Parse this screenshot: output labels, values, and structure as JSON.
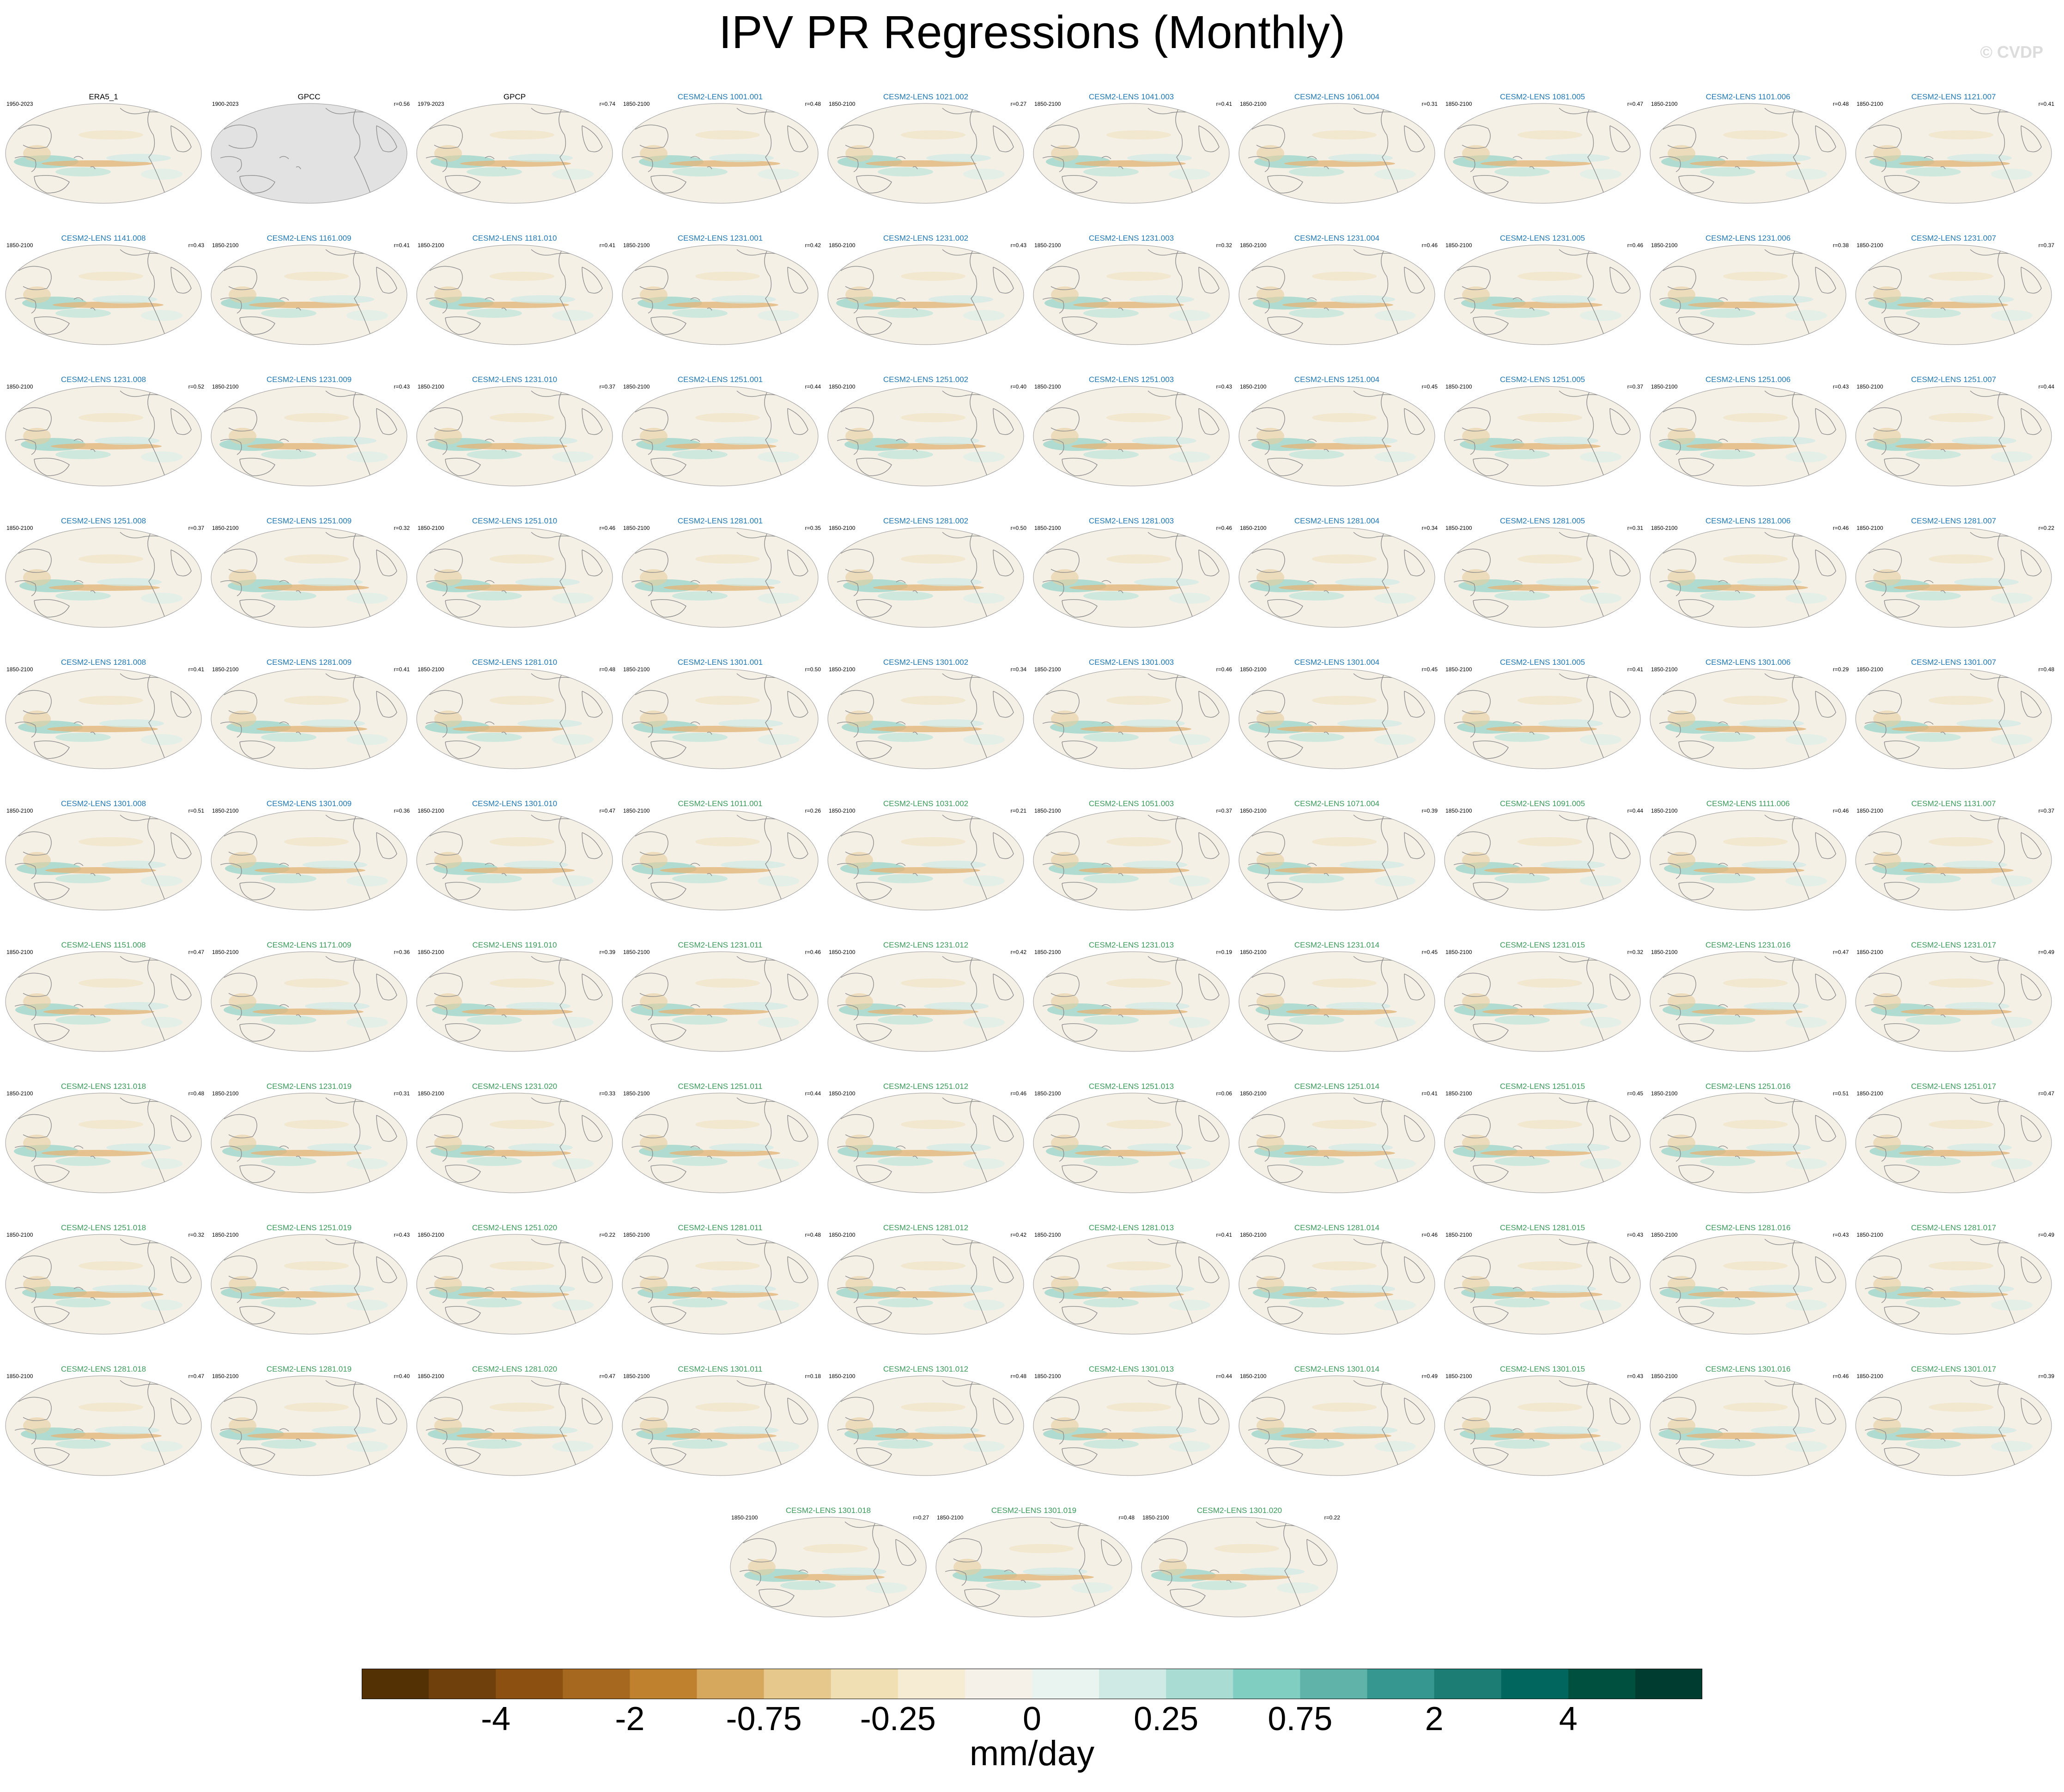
{
  "title": "IPV PR Regressions (Monthly)",
  "copyright": "© CVDP",
  "colors": {
    "obs_name": "#000000",
    "model_blue": "#1f77b4",
    "model_green": "#3a9a5a",
    "land_gray": "#e2e2e2",
    "coast": "#8c8c8c"
  },
  "chart_data": {
    "type": "heatmap",
    "units": "mm/day",
    "colorbar": {
      "ticks": [
        "-4",
        "-2",
        "-0.75",
        "-0.25",
        "0",
        "0.25",
        "0.75",
        "2",
        "4"
      ],
      "colors": [
        "#543005",
        "#6f400c",
        "#8c5110",
        "#a6671e",
        "#bf812d",
        "#d6a85e",
        "#e6c88c",
        "#f1dfb4",
        "#f6ebd3",
        "#f5f1e9",
        "#e9f3ef",
        "#cfeae4",
        "#a9ddd3",
        "#80cdc1",
        "#5fb3a9",
        "#35978f",
        "#1b7d73",
        "#01665e",
        "#00503f",
        "#003c30"
      ]
    },
    "panels": [
      {
        "name": "ERA5_1",
        "period": "1950-2023",
        "r": "",
        "group": "obs"
      },
      {
        "name": "GPCC",
        "period": "1900-2023",
        "r": "r=0.56",
        "group": "obs",
        "nodata": true
      },
      {
        "name": "GPCP",
        "period": "1979-2023",
        "r": "r=0.74",
        "group": "obs"
      },
      {
        "name": "CESM2-LENS 1001.001",
        "period": "1850-2100",
        "r": "r=0.48",
        "group": "blue"
      },
      {
        "name": "CESM2-LENS 1021.002",
        "period": "1850-2100",
        "r": "r=0.27",
        "group": "blue"
      },
      {
        "name": "CESM2-LENS 1041.003",
        "period": "1850-2100",
        "r": "r=0.41",
        "group": "blue"
      },
      {
        "name": "CESM2-LENS 1061.004",
        "period": "1850-2100",
        "r": "r=0.31",
        "group": "blue"
      },
      {
        "name": "CESM2-LENS 1081.005",
        "period": "1850-2100",
        "r": "r=0.47",
        "group": "blue"
      },
      {
        "name": "CESM2-LENS 1101.006",
        "period": "1850-2100",
        "r": "r=0.48",
        "group": "blue"
      },
      {
        "name": "CESM2-LENS 1121.007",
        "period": "1850-2100",
        "r": "r=0.41",
        "group": "blue"
      },
      {
        "name": "CESM2-LENS 1141.008",
        "period": "1850-2100",
        "r": "r=0.43",
        "group": "blue"
      },
      {
        "name": "CESM2-LENS 1161.009",
        "period": "1850-2100",
        "r": "r=0.41",
        "group": "blue"
      },
      {
        "name": "CESM2-LENS 1181.010",
        "period": "1850-2100",
        "r": "r=0.41",
        "group": "blue"
      },
      {
        "name": "CESM2-LENS 1231.001",
        "period": "1850-2100",
        "r": "r=0.42",
        "group": "blue"
      },
      {
        "name": "CESM2-LENS 1231.002",
        "period": "1850-2100",
        "r": "r=0.43",
        "group": "blue"
      },
      {
        "name": "CESM2-LENS 1231.003",
        "period": "1850-2100",
        "r": "r=0.32",
        "group": "blue"
      },
      {
        "name": "CESM2-LENS 1231.004",
        "period": "1850-2100",
        "r": "r=0.46",
        "group": "blue"
      },
      {
        "name": "CESM2-LENS 1231.005",
        "period": "1850-2100",
        "r": "r=0.46",
        "group": "blue"
      },
      {
        "name": "CESM2-LENS 1231.006",
        "period": "1850-2100",
        "r": "r=0.38",
        "group": "blue"
      },
      {
        "name": "CESM2-LENS 1231.007",
        "period": "1850-2100",
        "r": "r=0.37",
        "group": "blue"
      },
      {
        "name": "CESM2-LENS 1231.008",
        "period": "1850-2100",
        "r": "r=0.52",
        "group": "blue"
      },
      {
        "name": "CESM2-LENS 1231.009",
        "period": "1850-2100",
        "r": "r=0.43",
        "group": "blue"
      },
      {
        "name": "CESM2-LENS 1231.010",
        "period": "1850-2100",
        "r": "r=0.37",
        "group": "blue"
      },
      {
        "name": "CESM2-LENS 1251.001",
        "period": "1850-2100",
        "r": "r=0.44",
        "group": "blue"
      },
      {
        "name": "CESM2-LENS 1251.002",
        "period": "1850-2100",
        "r": "r=0.40",
        "group": "blue"
      },
      {
        "name": "CESM2-LENS 1251.003",
        "period": "1850-2100",
        "r": "r=0.43",
        "group": "blue"
      },
      {
        "name": "CESM2-LENS 1251.004",
        "period": "1850-2100",
        "r": "r=0.45",
        "group": "blue"
      },
      {
        "name": "CESM2-LENS 1251.005",
        "period": "1850-2100",
        "r": "r=0.37",
        "group": "blue"
      },
      {
        "name": "CESM2-LENS 1251.006",
        "period": "1850-2100",
        "r": "r=0.43",
        "group": "blue"
      },
      {
        "name": "CESM2-LENS 1251.007",
        "period": "1850-2100",
        "r": "r=0.44",
        "group": "blue"
      },
      {
        "name": "CESM2-LENS 1251.008",
        "period": "1850-2100",
        "r": "r=0.37",
        "group": "blue"
      },
      {
        "name": "CESM2-LENS 1251.009",
        "period": "1850-2100",
        "r": "r=0.32",
        "group": "blue"
      },
      {
        "name": "CESM2-LENS 1251.010",
        "period": "1850-2100",
        "r": "r=0.46",
        "group": "blue"
      },
      {
        "name": "CESM2-LENS 1281.001",
        "period": "1850-2100",
        "r": "r=0.35",
        "group": "blue"
      },
      {
        "name": "CESM2-LENS 1281.002",
        "period": "1850-2100",
        "r": "r=0.50",
        "group": "blue"
      },
      {
        "name": "CESM2-LENS 1281.003",
        "period": "1850-2100",
        "r": "r=0.46",
        "group": "blue"
      },
      {
        "name": "CESM2-LENS 1281.004",
        "period": "1850-2100",
        "r": "r=0.34",
        "group": "blue"
      },
      {
        "name": "CESM2-LENS 1281.005",
        "period": "1850-2100",
        "r": "r=0.31",
        "group": "blue"
      },
      {
        "name": "CESM2-LENS 1281.006",
        "period": "1850-2100",
        "r": "r=0.46",
        "group": "blue"
      },
      {
        "name": "CESM2-LENS 1281.007",
        "period": "1850-2100",
        "r": "r=0.22",
        "group": "blue"
      },
      {
        "name": "CESM2-LENS 1281.008",
        "period": "1850-2100",
        "r": "r=0.41",
        "group": "blue"
      },
      {
        "name": "CESM2-LENS 1281.009",
        "period": "1850-2100",
        "r": "r=0.41",
        "group": "blue"
      },
      {
        "name": "CESM2-LENS 1281.010",
        "period": "1850-2100",
        "r": "r=0.48",
        "group": "blue"
      },
      {
        "name": "CESM2-LENS 1301.001",
        "period": "1850-2100",
        "r": "r=0.50",
        "group": "blue"
      },
      {
        "name": "CESM2-LENS 1301.002",
        "period": "1850-2100",
        "r": "r=0.34",
        "group": "blue"
      },
      {
        "name": "CESM2-LENS 1301.003",
        "period": "1850-2100",
        "r": "r=0.46",
        "group": "blue"
      },
      {
        "name": "CESM2-LENS 1301.004",
        "period": "1850-2100",
        "r": "r=0.45",
        "group": "blue"
      },
      {
        "name": "CESM2-LENS 1301.005",
        "period": "1850-2100",
        "r": "r=0.41",
        "group": "blue"
      },
      {
        "name": "CESM2-LENS 1301.006",
        "period": "1850-2100",
        "r": "r=0.29",
        "group": "blue"
      },
      {
        "name": "CESM2-LENS 1301.007",
        "period": "1850-2100",
        "r": "r=0.48",
        "group": "blue"
      },
      {
        "name": "CESM2-LENS 1301.008",
        "period": "1850-2100",
        "r": "r=0.51",
        "group": "blue"
      },
      {
        "name": "CESM2-LENS 1301.009",
        "period": "1850-2100",
        "r": "r=0.36",
        "group": "blue"
      },
      {
        "name": "CESM2-LENS 1301.010",
        "period": "1850-2100",
        "r": "r=0.47",
        "group": "blue"
      },
      {
        "name": "CESM2-LENS 1011.001",
        "period": "1850-2100",
        "r": "r=0.26",
        "group": "green"
      },
      {
        "name": "CESM2-LENS 1031.002",
        "period": "1850-2100",
        "r": "r=0.21",
        "group": "green"
      },
      {
        "name": "CESM2-LENS 1051.003",
        "period": "1850-2100",
        "r": "r=0.37",
        "group": "green"
      },
      {
        "name": "CESM2-LENS 1071.004",
        "period": "1850-2100",
        "r": "r=0.39",
        "group": "green"
      },
      {
        "name": "CESM2-LENS 1091.005",
        "period": "1850-2100",
        "r": "r=0.44",
        "group": "green"
      },
      {
        "name": "CESM2-LENS 1111.006",
        "period": "1850-2100",
        "r": "r=0.46",
        "group": "green"
      },
      {
        "name": "CESM2-LENS 1131.007",
        "period": "1850-2100",
        "r": "r=0.37",
        "group": "green"
      },
      {
        "name": "CESM2-LENS 1151.008",
        "period": "1850-2100",
        "r": "r=0.47",
        "group": "green"
      },
      {
        "name": "CESM2-LENS 1171.009",
        "period": "1850-2100",
        "r": "r=0.36",
        "group": "green"
      },
      {
        "name": "CESM2-LENS 1191.010",
        "period": "1850-2100",
        "r": "r=0.39",
        "group": "green"
      },
      {
        "name": "CESM2-LENS 1231.011",
        "period": "1850-2100",
        "r": "r=0.46",
        "group": "green"
      },
      {
        "name": "CESM2-LENS 1231.012",
        "period": "1850-2100",
        "r": "r=0.42",
        "group": "green"
      },
      {
        "name": "CESM2-LENS 1231.013",
        "period": "1850-2100",
        "r": "r=0.19",
        "group": "green"
      },
      {
        "name": "CESM2-LENS 1231.014",
        "period": "1850-2100",
        "r": "r=0.45",
        "group": "green"
      },
      {
        "name": "CESM2-LENS 1231.015",
        "period": "1850-2100",
        "r": "r=0.32",
        "group": "green"
      },
      {
        "name": "CESM2-LENS 1231.016",
        "period": "1850-2100",
        "r": "r=0.47",
        "group": "green"
      },
      {
        "name": "CESM2-LENS 1231.017",
        "period": "1850-2100",
        "r": "r=0.49",
        "group": "green"
      },
      {
        "name": "CESM2-LENS 1231.018",
        "period": "1850-2100",
        "r": "r=0.48",
        "group": "green"
      },
      {
        "name": "CESM2-LENS 1231.019",
        "period": "1850-2100",
        "r": "r=0.31",
        "group": "green"
      },
      {
        "name": "CESM2-LENS 1231.020",
        "period": "1850-2100",
        "r": "r=0.33",
        "group": "green"
      },
      {
        "name": "CESM2-LENS 1251.011",
        "period": "1850-2100",
        "r": "r=0.44",
        "group": "green"
      },
      {
        "name": "CESM2-LENS 1251.012",
        "period": "1850-2100",
        "r": "r=0.46",
        "group": "green"
      },
      {
        "name": "CESM2-LENS 1251.013",
        "period": "1850-2100",
        "r": "r=0.06",
        "group": "green"
      },
      {
        "name": "CESM2-LENS 1251.014",
        "period": "1850-2100",
        "r": "r=0.41",
        "group": "green"
      },
      {
        "name": "CESM2-LENS 1251.015",
        "period": "1850-2100",
        "r": "r=0.45",
        "group": "green"
      },
      {
        "name": "CESM2-LENS 1251.016",
        "period": "1850-2100",
        "r": "r=0.51",
        "group": "green"
      },
      {
        "name": "CESM2-LENS 1251.017",
        "period": "1850-2100",
        "r": "r=0.47",
        "group": "green"
      },
      {
        "name": "CESM2-LENS 1251.018",
        "period": "1850-2100",
        "r": "r=0.32",
        "group": "green"
      },
      {
        "name": "CESM2-LENS 1251.019",
        "period": "1850-2100",
        "r": "r=0.43",
        "group": "green"
      },
      {
        "name": "CESM2-LENS 1251.020",
        "period": "1850-2100",
        "r": "r=0.22",
        "group": "green"
      },
      {
        "name": "CESM2-LENS 1281.011",
        "period": "1850-2100",
        "r": "r=0.48",
        "group": "green"
      },
      {
        "name": "CESM2-LENS 1281.012",
        "period": "1850-2100",
        "r": "r=0.42",
        "group": "green"
      },
      {
        "name": "CESM2-LENS 1281.013",
        "period": "1850-2100",
        "r": "r=0.41",
        "group": "green"
      },
      {
        "name": "CESM2-LENS 1281.014",
        "period": "1850-2100",
        "r": "r=0.46",
        "group": "green"
      },
      {
        "name": "CESM2-LENS 1281.015",
        "period": "1850-2100",
        "r": "r=0.43",
        "group": "green"
      },
      {
        "name": "CESM2-LENS 1281.016",
        "period": "1850-2100",
        "r": "r=0.43",
        "group": "green"
      },
      {
        "name": "CESM2-LENS 1281.017",
        "period": "1850-2100",
        "r": "r=0.49",
        "group": "green"
      },
      {
        "name": "CESM2-LENS 1281.018",
        "period": "1850-2100",
        "r": "r=0.47",
        "group": "green"
      },
      {
        "name": "CESM2-LENS 1281.019",
        "period": "1850-2100",
        "r": "r=0.40",
        "group": "green"
      },
      {
        "name": "CESM2-LENS 1281.020",
        "period": "1850-2100",
        "r": "r=0.47",
        "group": "green"
      },
      {
        "name": "CESM2-LENS 1301.011",
        "period": "1850-2100",
        "r": "r=0.18",
        "group": "green"
      },
      {
        "name": "CESM2-LENS 1301.012",
        "period": "1850-2100",
        "r": "r=0.48",
        "group": "green"
      },
      {
        "name": "CESM2-LENS 1301.013",
        "period": "1850-2100",
        "r": "r=0.44",
        "group": "green"
      },
      {
        "name": "CESM2-LENS 1301.014",
        "period": "1850-2100",
        "r": "r=0.49",
        "group": "green"
      },
      {
        "name": "CESM2-LENS 1301.015",
        "period": "1850-2100",
        "r": "r=0.43",
        "group": "green"
      },
      {
        "name": "CESM2-LENS 1301.016",
        "period": "1850-2100",
        "r": "r=0.46",
        "group": "green"
      },
      {
        "name": "CESM2-LENS 1301.017",
        "period": "1850-2100",
        "r": "r=0.39",
        "group": "green"
      },
      {
        "name": "CESM2-LENS 1301.018",
        "period": "1850-2100",
        "r": "r=0.27",
        "group": "green"
      },
      {
        "name": "CESM2-LENS 1301.019",
        "period": "1850-2100",
        "r": "r=0.48",
        "group": "green"
      },
      {
        "name": "CESM2-LENS 1301.020",
        "period": "1850-2100",
        "r": "r=0.22",
        "group": "green"
      }
    ]
  }
}
